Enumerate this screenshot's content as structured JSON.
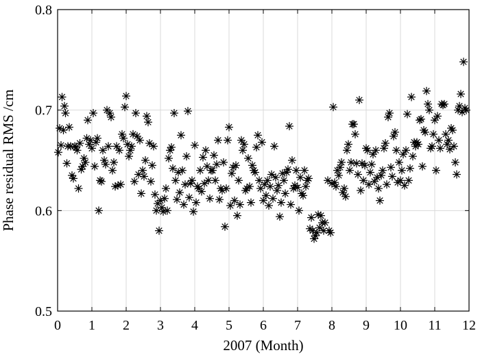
{
  "chart_data": {
    "type": "scatter",
    "title": "",
    "xlabel": "2007 (Month)",
    "ylabel": "Phase residual RMS /cm",
    "xlim": [
      0,
      12
    ],
    "ylim": [
      0.5,
      0.8
    ],
    "x_ticks": [
      0,
      1,
      2,
      3,
      4,
      5,
      6,
      7,
      8,
      9,
      10,
      11,
      12
    ],
    "x_tick_labels": [
      "0",
      "1",
      "2",
      "3",
      "4",
      "5",
      "6",
      "7",
      "8",
      "9",
      "10",
      "11",
      "12"
    ],
    "y_ticks": [
      0.5,
      0.6,
      0.7,
      0.8
    ],
    "y_tick_labels": [
      "0.5",
      "0.6",
      "0.7",
      "0.8"
    ],
    "grid": true,
    "marker": "asterisk",
    "marker_color": "#000000",
    "series": [
      {
        "points": [
          [
            0.02,
            0.658
          ],
          [
            0.06,
            0.682
          ],
          [
            0.1,
            0.665
          ],
          [
            0.13,
            0.713
          ],
          [
            0.17,
            0.68
          ],
          [
            0.2,
            0.704
          ],
          [
            0.23,
            0.697
          ],
          [
            0.27,
            0.647
          ],
          [
            0.3,
            0.664
          ],
          [
            0.34,
            0.683
          ],
          [
            0.38,
            0.664
          ],
          [
            0.42,
            0.635
          ],
          [
            0.46,
            0.632
          ],
          [
            0.5,
            0.664
          ],
          [
            0.54,
            0.663
          ],
          [
            0.57,
            0.66
          ],
          [
            0.61,
            0.622
          ],
          [
            0.65,
            0.667
          ],
          [
            0.69,
            0.641
          ],
          [
            0.73,
            0.644
          ],
          [
            0.77,
            0.652
          ],
          [
            0.81,
            0.648
          ],
          [
            0.85,
            0.672
          ],
          [
            0.88,
            0.69
          ],
          [
            0.92,
            0.666
          ],
          [
            0.96,
            0.67
          ],
          [
            1.0,
            0.662
          ],
          [
            1.04,
            0.697
          ],
          [
            1.08,
            0.644
          ],
          [
            1.12,
            0.668
          ],
          [
            1.16,
            0.672
          ],
          [
            1.2,
            0.6
          ],
          [
            1.24,
            0.63
          ],
          [
            1.28,
            0.629
          ],
          [
            1.32,
            0.66
          ],
          [
            1.36,
            0.65
          ],
          [
            1.4,
            0.646
          ],
          [
            1.44,
            0.7
          ],
          [
            1.48,
            0.664
          ],
          [
            1.52,
            0.697
          ],
          [
            1.56,
            0.693
          ],
          [
            1.6,
            0.64
          ],
          [
            1.64,
            0.648
          ],
          [
            1.68,
            0.624
          ],
          [
            1.72,
            0.664
          ],
          [
            1.76,
            0.625
          ],
          [
            1.8,
            0.66
          ],
          [
            1.84,
            0.626
          ],
          [
            1.88,
            0.676
          ],
          [
            1.92,
            0.672
          ],
          [
            1.96,
            0.703
          ],
          [
            2.0,
            0.714
          ],
          [
            2.04,
            0.666
          ],
          [
            2.08,
            0.654
          ],
          [
            2.12,
            0.66
          ],
          [
            2.16,
            0.664
          ],
          [
            2.2,
            0.676
          ],
          [
            2.24,
            0.629
          ],
          [
            2.28,
            0.697
          ],
          [
            2.32,
            0.674
          ],
          [
            2.36,
            0.636
          ],
          [
            2.4,
            0.67
          ],
          [
            2.44,
            0.617
          ],
          [
            2.48,
            0.64
          ],
          [
            2.52,
            0.634
          ],
          [
            2.56,
            0.65
          ],
          [
            2.6,
            0.694
          ],
          [
            2.64,
            0.688
          ],
          [
            2.68,
            0.667
          ],
          [
            2.72,
            0.629
          ],
          [
            2.76,
            0.645
          ],
          [
            2.8,
            0.664
          ],
          [
            2.84,
            0.616
          ],
          [
            2.88,
            0.6
          ],
          [
            2.92,
            0.607
          ],
          [
            2.96,
            0.58
          ],
          [
            3.0,
            0.61
          ],
          [
            3.04,
            0.603
          ],
          [
            3.08,
            0.599
          ],
          [
            3.12,
            0.612
          ],
          [
            3.16,
            0.622
          ],
          [
            3.2,
            0.6
          ],
          [
            3.24,
            0.652
          ],
          [
            3.28,
            0.66
          ],
          [
            3.32,
            0.663
          ],
          [
            3.36,
            0.642
          ],
          [
            3.4,
            0.697
          ],
          [
            3.44,
            0.63
          ],
          [
            3.48,
            0.611
          ],
          [
            3.52,
            0.638
          ],
          [
            3.56,
            0.618
          ],
          [
            3.6,
            0.675
          ],
          [
            3.64,
            0.64
          ],
          [
            3.68,
            0.606
          ],
          [
            3.72,
            0.626
          ],
          [
            3.76,
            0.654
          ],
          [
            3.8,
            0.699
          ],
          [
            3.84,
            0.613
          ],
          [
            3.88,
            0.627
          ],
          [
            3.92,
            0.63
          ],
          [
            3.96,
            0.599
          ],
          [
            4.0,
            0.665
          ],
          [
            4.04,
            0.608
          ],
          [
            4.08,
            0.624
          ],
          [
            4.12,
            0.622
          ],
          [
            4.16,
            0.64
          ],
          [
            4.2,
            0.619
          ],
          [
            4.24,
            0.653
          ],
          [
            4.28,
            0.627
          ],
          [
            4.32,
            0.66
          ],
          [
            4.36,
            0.644
          ],
          [
            4.4,
            0.63
          ],
          [
            4.44,
            0.612
          ],
          [
            4.48,
            0.64
          ],
          [
            4.52,
            0.64
          ],
          [
            4.56,
            0.655
          ],
          [
            4.6,
            0.63
          ],
          [
            4.64,
            0.646
          ],
          [
            4.68,
            0.67
          ],
          [
            4.72,
            0.611
          ],
          [
            4.76,
            0.622
          ],
          [
            4.8,
            0.62
          ],
          [
            4.84,
            0.648
          ],
          [
            4.88,
            0.584
          ],
          [
            4.92,
            0.622
          ],
          [
            4.96,
            0.67
          ],
          [
            5.0,
            0.683
          ],
          [
            5.04,
            0.605
          ],
          [
            5.08,
            0.637
          ],
          [
            5.12,
            0.643
          ],
          [
            5.16,
            0.61
          ],
          [
            5.2,
            0.645
          ],
          [
            5.24,
            0.595
          ],
          [
            5.28,
            0.63
          ],
          [
            5.32,
            0.606
          ],
          [
            5.36,
            0.67
          ],
          [
            5.4,
            0.66
          ],
          [
            5.44,
            0.666
          ],
          [
            5.48,
            0.62
          ],
          [
            5.52,
            0.622
          ],
          [
            5.56,
            0.652
          ],
          [
            5.6,
            0.624
          ],
          [
            5.64,
            0.608
          ],
          [
            5.68,
            0.645
          ],
          [
            5.72,
            0.64
          ],
          [
            5.76,
            0.638
          ],
          [
            5.8,
            0.663
          ],
          [
            5.84,
            0.675
          ],
          [
            5.88,
            0.63
          ],
          [
            5.92,
            0.622
          ],
          [
            5.96,
            0.668
          ],
          [
            6.0,
            0.61
          ],
          [
            6.04,
            0.626
          ],
          [
            6.08,
            0.615
          ],
          [
            6.12,
            0.63
          ],
          [
            6.16,
            0.605
          ],
          [
            6.2,
            0.624
          ],
          [
            6.24,
            0.636
          ],
          [
            6.28,
            0.612
          ],
          [
            6.32,
            0.664
          ],
          [
            6.36,
            0.633
          ],
          [
            6.4,
            0.62
          ],
          [
            6.44,
            0.625
          ],
          [
            6.48,
            0.594
          ],
          [
            6.52,
            0.608
          ],
          [
            6.56,
            0.637
          ],
          [
            6.6,
            0.63
          ],
          [
            6.64,
            0.617
          ],
          [
            6.68,
            0.638
          ],
          [
            6.72,
            0.641
          ],
          [
            6.76,
            0.684
          ],
          [
            6.8,
            0.606
          ],
          [
            6.84,
            0.65
          ],
          [
            6.88,
            0.622
          ],
          [
            6.92,
            0.625
          ],
          [
            6.96,
            0.64
          ],
          [
            7.0,
            0.623
          ],
          [
            7.04,
            0.6
          ],
          [
            7.08,
            0.633
          ],
          [
            7.12,
            0.617
          ],
          [
            7.16,
            0.615
          ],
          [
            7.2,
            0.64
          ],
          [
            7.24,
            0.624
          ],
          [
            7.28,
            0.63
          ],
          [
            7.32,
            0.632
          ],
          [
            7.36,
            0.582
          ],
          [
            7.4,
            0.593
          ],
          [
            7.44,
            0.58
          ],
          [
            7.48,
            0.572
          ],
          [
            7.52,
            0.575
          ],
          [
            7.56,
            0.578
          ],
          [
            7.6,
            0.596
          ],
          [
            7.64,
            0.583
          ],
          [
            7.68,
            0.595
          ],
          [
            7.72,
            0.588
          ],
          [
            7.76,
            0.58
          ],
          [
            7.8,
            0.588
          ],
          [
            7.88,
            0.63
          ],
          [
            7.92,
            0.58
          ],
          [
            7.96,
            0.578
          ],
          [
            8.0,
            0.627
          ],
          [
            8.04,
            0.703
          ],
          [
            8.08,
            0.628
          ],
          [
            8.12,
            0.624
          ],
          [
            8.16,
            0.64
          ],
          [
            8.2,
            0.635
          ],
          [
            8.24,
            0.643
          ],
          [
            8.28,
            0.648
          ],
          [
            8.32,
            0.618
          ],
          [
            8.36,
            0.622
          ],
          [
            8.4,
            0.614
          ],
          [
            8.44,
            0.66
          ],
          [
            8.48,
            0.666
          ],
          [
            8.52,
            0.64
          ],
          [
            8.56,
            0.648
          ],
          [
            8.6,
            0.686
          ],
          [
            8.64,
            0.686
          ],
          [
            8.68,
            0.676
          ],
          [
            8.72,
            0.647
          ],
          [
            8.76,
            0.636
          ],
          [
            8.8,
            0.71
          ],
          [
            8.84,
            0.62
          ],
          [
            8.88,
            0.647
          ],
          [
            8.92,
            0.63
          ],
          [
            8.96,
            0.645
          ],
          [
            9.0,
            0.662
          ],
          [
            9.04,
            0.66
          ],
          [
            9.08,
            0.626
          ],
          [
            9.12,
            0.638
          ],
          [
            9.16,
            0.646
          ],
          [
            9.2,
            0.656
          ],
          [
            9.24,
            0.629
          ],
          [
            9.28,
            0.66
          ],
          [
            9.32,
            0.633
          ],
          [
            9.36,
            0.622
          ],
          [
            9.4,
            0.61
          ],
          [
            9.44,
            0.635
          ],
          [
            9.48,
            0.64
          ],
          [
            9.52,
            0.662
          ],
          [
            9.56,
            0.667
          ],
          [
            9.6,
            0.626
          ],
          [
            9.64,
            0.693
          ],
          [
            9.68,
            0.697
          ],
          [
            9.72,
            0.643
          ],
          [
            9.76,
            0.634
          ],
          [
            9.8,
            0.674
          ],
          [
            9.84,
            0.678
          ],
          [
            9.88,
            0.66
          ],
          [
            9.92,
            0.628
          ],
          [
            9.96,
            0.648
          ],
          [
            10.0,
            0.63
          ],
          [
            10.04,
            0.64
          ],
          [
            10.08,
            0.656
          ],
          [
            10.12,
            0.625
          ],
          [
            10.16,
            0.66
          ],
          [
            10.2,
            0.696
          ],
          [
            10.24,
            0.63
          ],
          [
            10.28,
            0.642
          ],
          [
            10.32,
            0.713
          ],
          [
            10.36,
            0.654
          ],
          [
            10.4,
            0.668
          ],
          [
            10.44,
            0.664
          ],
          [
            10.48,
            0.668
          ],
          [
            10.52,
            0.666
          ],
          [
            10.56,
            0.69
          ],
          [
            10.6,
            0.691
          ],
          [
            10.64,
            0.644
          ],
          [
            10.68,
            0.68
          ],
          [
            10.72,
            0.678
          ],
          [
            10.76,
            0.719
          ],
          [
            10.8,
            0.706
          ],
          [
            10.84,
            0.7
          ],
          [
            10.88,
            0.662
          ],
          [
            10.92,
            0.664
          ],
          [
            10.96,
            0.676
          ],
          [
            11.0,
            0.69
          ],
          [
            11.04,
            0.64
          ],
          [
            11.08,
            0.694
          ],
          [
            11.12,
            0.67
          ],
          [
            11.16,
            0.662
          ],
          [
            11.2,
            0.706
          ],
          [
            11.24,
            0.705
          ],
          [
            11.28,
            0.706
          ],
          [
            11.32,
            0.676
          ],
          [
            11.36,
            0.666
          ],
          [
            11.4,
            0.67
          ],
          [
            11.44,
            0.661
          ],
          [
            11.48,
            0.682
          ],
          [
            11.52,
            0.68
          ],
          [
            11.56,
            0.664
          ],
          [
            11.6,
            0.648
          ],
          [
            11.64,
            0.636
          ],
          [
            11.68,
            0.7
          ],
          [
            11.72,
            0.704
          ],
          [
            11.76,
            0.716
          ],
          [
            11.8,
            0.698
          ],
          [
            11.84,
            0.748
          ],
          [
            11.88,
            0.702
          ],
          [
            11.92,
            0.7
          ]
        ]
      }
    ]
  }
}
